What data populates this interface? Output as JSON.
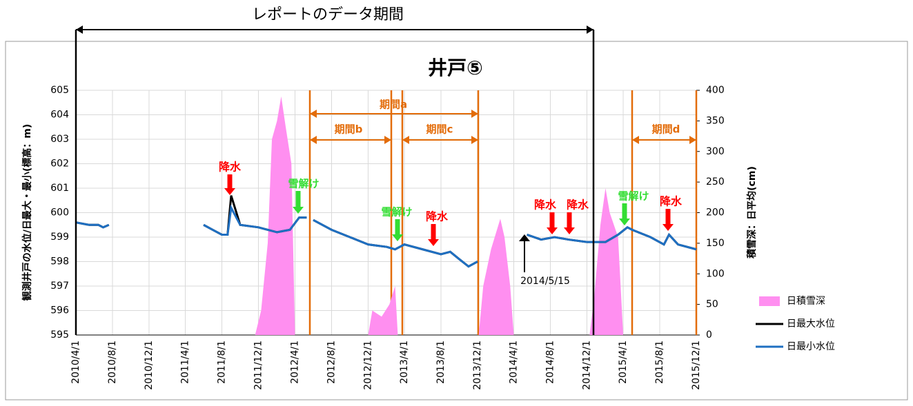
{
  "chart_data": {
    "type": "line",
    "title": "井戸⑤",
    "y_label": "観測井戸の水位/日最大・最小(標高：m)",
    "y2_label": "積雪深：日平均(cm)",
    "xlim": [
      "2010/4/1",
      "2015/12/1"
    ],
    "xticks": [
      "2010/4/1",
      "2010/8/1",
      "2010/12/1",
      "2011/4/1",
      "2011/8/1",
      "2011/12/1",
      "2012/4/1",
      "2012/8/1",
      "2012/12/1",
      "2013/4/1",
      "2013/8/1",
      "2013/12/1",
      "2014/4/1",
      "2014/8/1",
      "2014/12/1",
      "2015/4/1",
      "2015/8/1",
      "2015/12/1"
    ],
    "ylim": [
      595,
      605
    ],
    "yticks": [
      595,
      596,
      597,
      598,
      599,
      600,
      601,
      602,
      603,
      604,
      605
    ],
    "y2lim": [
      0,
      400
    ],
    "y2ticks": [
      0,
      50,
      100,
      150,
      200,
      250,
      300,
      350,
      400
    ],
    "grid": true,
    "series": [
      {
        "name": "日積雪深",
        "color": "#ff8ff0",
        "axis": "y2",
        "kind": "area",
        "x": [
          "2011/11/20",
          "2011/12/10",
          "2012/1/1",
          "2012/1/15",
          "2012/2/1",
          "2012/2/15",
          "2012/3/1",
          "2012/3/20",
          "2012/4/1",
          "2012/12/1",
          "2012/12/15",
          "2013/1/15",
          "2013/2/10",
          "2013/3/1",
          "2013/3/10",
          "2013/12/5",
          "2013/12/20",
          "2014/1/15",
          "2014/2/15",
          "2014/3/1",
          "2014/3/20",
          "2014/4/1",
          "2014/12/10",
          "2014/12/25",
          "2015/1/15",
          "2015/2/1",
          "2015/2/15",
          "2015/3/15",
          "2015/4/1"
        ],
        "values": [
          0,
          40,
          150,
          320,
          350,
          390,
          340,
          280,
          0,
          0,
          40,
          30,
          50,
          80,
          0,
          0,
          80,
          140,
          190,
          160,
          80,
          0,
          0,
          60,
          180,
          240,
          200,
          160,
          0
        ]
      },
      {
        "name": "日最大水位",
        "color": "#000000",
        "kind": "line",
        "x": [
          "2010/4/1",
          "2010/5/15",
          "2010/6/15",
          "2010/7/1",
          "2010/7/20",
          "2010/8/1",
          "2011/6/1",
          "2011/7/1",
          "2011/8/1",
          "2011/8/20",
          "2011/9/1",
          "2011/10/1",
          "2011/12/1",
          "2012/2/1",
          "2012/3/15",
          "2012/4/15",
          "2012/5/10",
          "2012/5/20",
          "2012/6/1",
          "2012/8/1",
          "2012/10/1",
          "2012/12/1",
          "2013/2/1",
          "2013/3/1",
          "2013/4/1",
          "2013/6/1",
          "2013/8/1",
          "2013/9/1",
          "2013/10/1",
          "2013/11/1",
          "2013/12/1",
          "2014/1/1",
          "2014/5/15",
          "2014/7/1",
          "2014/8/15",
          "2014/10/1",
          "2014/12/1",
          "2015/2/1",
          "2015/3/15",
          "2015/4/15",
          "2015/5/1",
          "2015/7/1",
          "2015/8/15",
          "2015/9/1",
          "2015/10/1",
          "2015/12/1"
        ],
        "values": [
          599.6,
          599.5,
          599.5,
          599.4,
          599.5,
          null,
          599.5,
          599.3,
          599.1,
          599.1,
          600.7,
          599.5,
          599.4,
          599.2,
          599.3,
          599.8,
          599.8,
          null,
          599.7,
          599.3,
          599.0,
          598.7,
          598.6,
          598.5,
          598.7,
          598.5,
          598.3,
          598.4,
          598.1,
          597.8,
          598.0,
          null,
          599.1,
          598.9,
          599.0,
          598.9,
          598.8,
          598.8,
          599.1,
          599.4,
          599.3,
          599.0,
          598.7,
          599.1,
          598.7,
          598.5
        ]
      },
      {
        "name": "日最小水位",
        "color": "#1f6fc1",
        "kind": "line",
        "x": [
          "2010/4/1",
          "2010/5/15",
          "2010/6/15",
          "2010/7/1",
          "2010/7/20",
          "2010/8/1",
          "2011/6/1",
          "2011/7/1",
          "2011/8/1",
          "2011/8/20",
          "2011/9/1",
          "2011/10/1",
          "2011/12/1",
          "2012/2/1",
          "2012/3/15",
          "2012/4/15",
          "2012/5/10",
          "2012/5/20",
          "2012/6/1",
          "2012/8/1",
          "2012/10/1",
          "2012/12/1",
          "2013/2/1",
          "2013/3/1",
          "2013/4/1",
          "2013/6/1",
          "2013/8/1",
          "2013/9/1",
          "2013/10/1",
          "2013/11/1",
          "2013/12/1",
          "2014/1/1",
          "2014/5/15",
          "2014/7/1",
          "2014/8/15",
          "2014/10/1",
          "2014/12/1",
          "2015/2/1",
          "2015/3/15",
          "2015/4/15",
          "2015/5/1",
          "2015/7/1",
          "2015/8/15",
          "2015/9/1",
          "2015/10/1",
          "2015/12/1"
        ],
        "values": [
          599.6,
          599.5,
          599.5,
          599.4,
          599.5,
          null,
          599.5,
          599.3,
          599.1,
          599.1,
          600.2,
          599.5,
          599.4,
          599.2,
          599.3,
          599.8,
          599.8,
          null,
          599.7,
          599.3,
          599.0,
          598.7,
          598.6,
          598.5,
          598.7,
          598.5,
          598.3,
          598.4,
          598.1,
          597.8,
          598.0,
          null,
          599.1,
          598.9,
          599.0,
          598.9,
          598.8,
          598.8,
          599.1,
          599.4,
          599.3,
          599.0,
          598.7,
          599.1,
          598.7,
          598.5
        ]
      }
    ],
    "annotations": [
      {
        "text": "レポートのデータ期間",
        "color": "#000000"
      },
      {
        "text": "期間a",
        "color": "#e36c09"
      },
      {
        "text": "期間b",
        "color": "#e36c09"
      },
      {
        "text": "期間c",
        "color": "#e36c09"
      },
      {
        "text": "期間d",
        "color": "#e36c09"
      },
      {
        "text": "降水",
        "color": "#ff0000"
      },
      {
        "text": "雪解け",
        "color": "#33dd33"
      },
      {
        "text": "雪解け",
        "color": "#33dd33"
      },
      {
        "text": "降水",
        "color": "#ff0000"
      },
      {
        "text": "降水",
        "color": "#ff0000"
      },
      {
        "text": "降水",
        "color": "#ff0000"
      },
      {
        "text": "雪解け",
        "color": "#33dd33"
      },
      {
        "text": "降水",
        "color": "#ff0000"
      },
      {
        "text": "2014/5/15",
        "color": "#000000"
      }
    ]
  }
}
